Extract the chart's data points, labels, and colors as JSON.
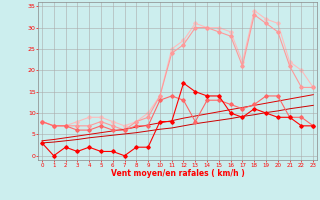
{
  "x": [
    0,
    1,
    2,
    3,
    4,
    5,
    6,
    7,
    8,
    9,
    10,
    11,
    12,
    13,
    14,
    15,
    16,
    17,
    18,
    19,
    20,
    21,
    22,
    23
  ],
  "series": [
    {
      "color": "#FF0000",
      "linewidth": 0.8,
      "marker": "D",
      "markersize": 1.8,
      "zorder": 5,
      "y": [
        3,
        0,
        2,
        1,
        2,
        1,
        1,
        0,
        2,
        2,
        8,
        8,
        17,
        15,
        14,
        14,
        10,
        9,
        11,
        10,
        9,
        9,
        7,
        7
      ]
    },
    {
      "color": "#CC0000",
      "linewidth": 0.7,
      "marker": null,
      "markersize": 0,
      "zorder": 3,
      "y": [
        3.0,
        3.2,
        3.5,
        3.8,
        4.2,
        4.5,
        4.8,
        5.1,
        5.4,
        5.8,
        6.2,
        6.5,
        7.0,
        7.5,
        7.9,
        8.3,
        8.7,
        9.2,
        9.6,
        10.1,
        10.5,
        11.0,
        11.4,
        11.8
      ]
    },
    {
      "color": "#DD0000",
      "linewidth": 0.7,
      "marker": null,
      "markersize": 0,
      "zorder": 3,
      "y": [
        3.5,
        3.8,
        4.2,
        4.6,
        5.0,
        5.4,
        5.8,
        6.2,
        6.7,
        7.2,
        7.7,
        8.2,
        8.8,
        9.3,
        9.8,
        10.3,
        10.8,
        11.3,
        11.8,
        12.3,
        12.8,
        13.3,
        13.8,
        14.3
      ]
    },
    {
      "color": "#FF6666",
      "linewidth": 0.8,
      "marker": "D",
      "markersize": 1.8,
      "zorder": 4,
      "y": [
        8,
        7,
        7,
        6,
        6,
        7,
        6,
        6,
        7,
        7,
        13,
        14,
        13,
        8,
        13,
        13,
        12,
        11,
        12,
        14,
        14,
        9,
        9,
        7
      ]
    },
    {
      "color": "#FF9999",
      "linewidth": 0.8,
      "marker": "D",
      "markersize": 1.8,
      "zorder": 2,
      "y": [
        8,
        7,
        7,
        7,
        7,
        8,
        7,
        6,
        8,
        9,
        14,
        24,
        26,
        30,
        30,
        29,
        28,
        21,
        33,
        31,
        29,
        21,
        16,
        16
      ]
    },
    {
      "color": "#FFBBBB",
      "linewidth": 0.8,
      "marker": "D",
      "markersize": 1.8,
      "zorder": 1,
      "y": [
        8,
        7,
        7,
        8,
        9,
        9,
        8,
        7,
        8,
        10,
        14,
        25,
        27,
        31,
        30,
        30,
        29,
        22,
        34,
        32,
        31,
        22,
        20,
        16
      ]
    }
  ],
  "xlim": [
    -0.3,
    23.3
  ],
  "ylim": [
    -1,
    36
  ],
  "ytick_vals": [
    0,
    5,
    10,
    15,
    20,
    25,
    30,
    35
  ],
  "ytick_labels": [
    "0",
    "5",
    "10",
    "15",
    "20",
    "25",
    "30",
    "35"
  ],
  "xticks": [
    0,
    1,
    2,
    3,
    4,
    5,
    6,
    7,
    8,
    9,
    10,
    11,
    12,
    13,
    14,
    15,
    16,
    17,
    18,
    19,
    20,
    21,
    22,
    23
  ],
  "xlabel": "Vent moyen/en rafales ( km/h )",
  "background_color": "#CCEEEE",
  "grid_color": "#AAAAAA",
  "tick_color": "#FF0000",
  "label_color": "#FF0000"
}
